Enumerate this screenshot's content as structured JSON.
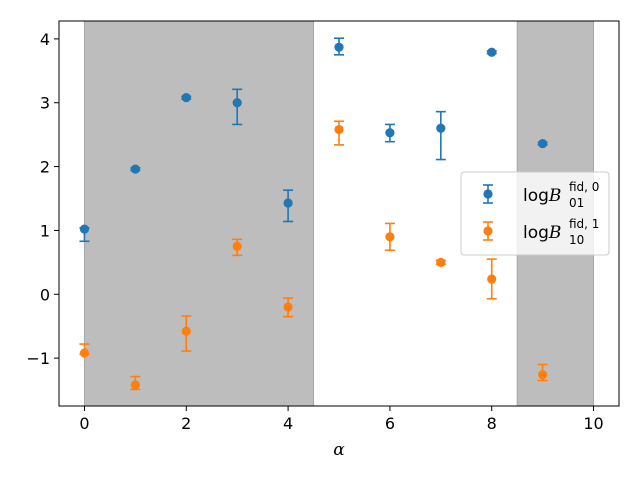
{
  "chart_data": {
    "type": "scatter",
    "title": "",
    "xlabel": "α",
    "ylabel": "",
    "xlim": [
      -0.5,
      10.5
    ],
    "ylim": [
      -1.75,
      4.28
    ],
    "xticks": [
      0,
      2,
      4,
      6,
      8,
      10
    ],
    "xtick_labels": [
      "0",
      "2",
      "4",
      "6",
      "8",
      "10"
    ],
    "yticks": [
      -1,
      0,
      1,
      2,
      3,
      4
    ],
    "ytick_labels": [
      "−1",
      "0",
      "1",
      "2",
      "3",
      "4"
    ],
    "grid": false,
    "legend_position": "center-right",
    "shaded_regions": [
      {
        "x0": 0,
        "x1": 4.5,
        "color": "#bdbdbd"
      },
      {
        "x0": 8.5,
        "x1": 10,
        "color": "#bdbdbd"
      }
    ],
    "series": [
      {
        "legend": {
          "base": "log",
          "main": "B",
          "sup": "fid, 0",
          "sub": "01"
        },
        "color": "#1f77b4",
        "x": [
          0,
          1,
          2,
          3,
          4,
          5,
          6,
          7,
          8,
          9
        ],
        "y": [
          1.02,
          1.96,
          3.08,
          3.0,
          1.43,
          3.87,
          2.53,
          2.6,
          3.79,
          2.36
        ],
        "err_low": [
          0.19,
          0.02,
          0.02,
          0.34,
          0.29,
          0.12,
          0.14,
          0.49,
          0.02,
          0.02
        ],
        "err_high": [
          0.02,
          0.02,
          0.02,
          0.21,
          0.2,
          0.14,
          0.13,
          0.26,
          0.02,
          0.02
        ]
      },
      {
        "legend": {
          "base": "log",
          "main": "B",
          "sup": "fid, 1",
          "sub": "10"
        },
        "color": "#ff7f0e",
        "x": [
          0,
          1,
          2,
          3,
          4,
          5,
          6,
          7,
          8,
          9
        ],
        "y": [
          -0.92,
          -1.42,
          -0.58,
          0.75,
          -0.2,
          2.58,
          0.9,
          0.5,
          0.24,
          -1.26
        ],
        "err_low": [
          0.02,
          0.07,
          0.31,
          0.14,
          0.15,
          0.24,
          0.21,
          0.03,
          0.31,
          0.09
        ],
        "err_high": [
          0.14,
          0.13,
          0.24,
          0.11,
          0.14,
          0.13,
          0.21,
          0.03,
          0.31,
          0.16
        ]
      }
    ]
  }
}
